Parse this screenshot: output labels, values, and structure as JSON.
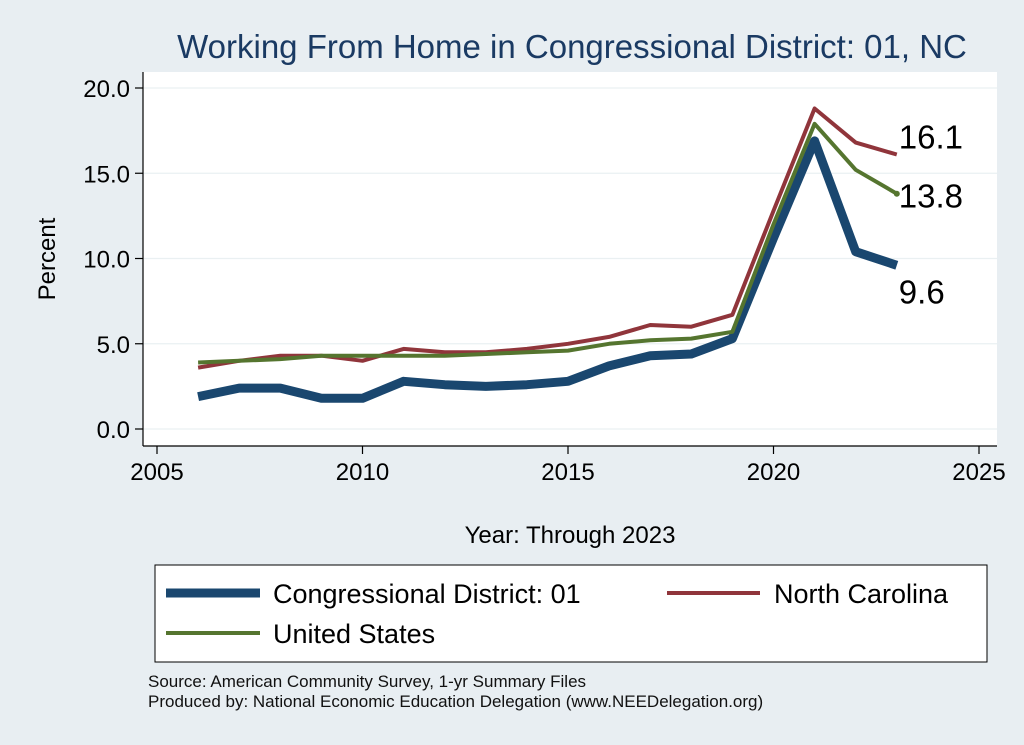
{
  "chart_data": {
    "type": "line",
    "title": "Working From Home in Congressional District: 01, NC",
    "xlabel": "Year: Through 2023",
    "ylabel": "Percent",
    "xlim": [
      2005,
      2025
    ],
    "ylim": [
      0,
      20
    ],
    "x_ticks": [
      "2005",
      "2010",
      "2015",
      "2020",
      "2025"
    ],
    "y_ticks": [
      "0.0",
      "5.0",
      "10.0",
      "15.0",
      "20.0"
    ],
    "grid": true,
    "legend_position": "bottom",
    "x": [
      2006,
      2007,
      2008,
      2009,
      2010,
      2011,
      2012,
      2013,
      2014,
      2015,
      2016,
      2017,
      2018,
      2019,
      2020,
      2021,
      2022,
      2023
    ],
    "series": [
      {
        "name": "Congressional District: 01",
        "color": "#1a476f",
        "values": [
          1.9,
          2.4,
          2.4,
          1.8,
          1.8,
          2.8,
          2.6,
          2.5,
          2.6,
          2.8,
          3.7,
          4.3,
          4.4,
          5.3,
          11.2,
          16.9,
          10.4,
          9.6
        ],
        "end_label": "9.6"
      },
      {
        "name": "North Carolina",
        "color": "#90353b",
        "values": [
          3.6,
          4.0,
          4.3,
          4.3,
          4.0,
          4.7,
          4.5,
          4.5,
          4.7,
          5.0,
          5.4,
          6.1,
          6.0,
          6.7,
          12.8,
          18.8,
          16.8,
          16.1
        ],
        "end_label": "16.1"
      },
      {
        "name": "United States",
        "color": "#55752f",
        "values": [
          3.9,
          4.0,
          4.1,
          4.3,
          4.3,
          4.3,
          4.3,
          4.4,
          4.5,
          4.6,
          5.0,
          5.2,
          5.3,
          5.7,
          12.0,
          17.9,
          15.2,
          13.8
        ],
        "end_label": "13.8"
      }
    ]
  },
  "footer": {
    "source": "Source: American Community Survey, 1-yr Summary Files",
    "produced_by": "Produced by: National Economic Education Delegation (www.NEEDelegation.org)"
  }
}
